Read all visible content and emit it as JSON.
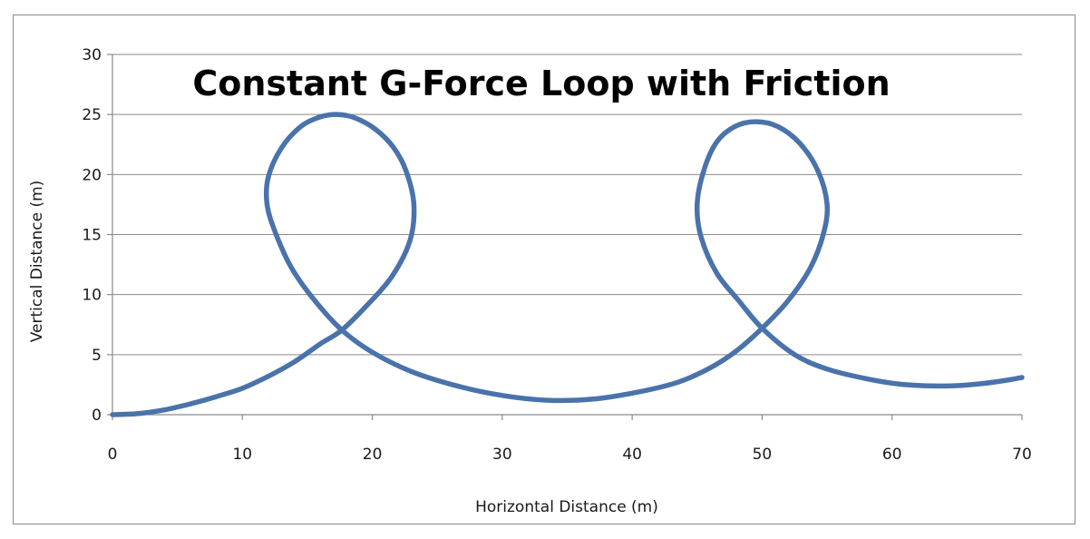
{
  "chart_data": {
    "type": "line",
    "title": "Constant G-Force Loop with Friction",
    "xlabel": "Horizontal Distance  (m)",
    "ylabel": "Vertical Distance  (m)",
    "xlim": [
      0,
      70
    ],
    "ylim": [
      0,
      30
    ],
    "x_ticks": [
      0,
      10,
      20,
      30,
      40,
      50,
      60,
      70
    ],
    "y_ticks": [
      0,
      5,
      10,
      15,
      20,
      25,
      30
    ],
    "grid": "horizontal",
    "legend": "none",
    "series": [
      {
        "color": "#4a72ab",
        "x": [
          0,
          2,
          4,
          6,
          8,
          10,
          12,
          14,
          16,
          17.6,
          19.5,
          21.5,
          22.9,
          23.2,
          22.6,
          21.6,
          20.2,
          18.7,
          17.4,
          16.0,
          14.5,
          13.0,
          12.0,
          11.9,
          12.6,
          13.8,
          15.5,
          17.6,
          20.0,
          23.0,
          26.5,
          30.0,
          33.5,
          37.0,
          40.5,
          43.5,
          46.0,
          48.0,
          50.0,
          52.0,
          53.7,
          54.7,
          55.0,
          54.3,
          52.9,
          51.2,
          49.5,
          47.9,
          46.5,
          45.5,
          45.0,
          45.3,
          46.5,
          48.2,
          50.0,
          52.5,
          55.0,
          58.0,
          61.0,
          64.5,
          67.0,
          69.0,
          70.0
        ],
        "y": [
          0,
          0.1,
          0.4,
          0.9,
          1.5,
          2.2,
          3.2,
          4.4,
          5.9,
          7.0,
          9.0,
          11.5,
          14.5,
          17.5,
          20.3,
          22.3,
          23.8,
          24.7,
          25.0,
          24.8,
          24.0,
          22.2,
          19.8,
          17.5,
          15.0,
          12.2,
          9.6,
          7.1,
          5.2,
          3.6,
          2.4,
          1.6,
          1.2,
          1.3,
          1.9,
          2.7,
          3.9,
          5.3,
          7.2,
          9.5,
          12.2,
          15.0,
          17.5,
          20.3,
          22.6,
          24.0,
          24.4,
          24.0,
          22.7,
          20.3,
          17.5,
          14.8,
          11.8,
          9.5,
          7.2,
          5.0,
          3.8,
          3.0,
          2.5,
          2.4,
          2.6,
          2.9,
          3.1
        ]
      }
    ]
  }
}
